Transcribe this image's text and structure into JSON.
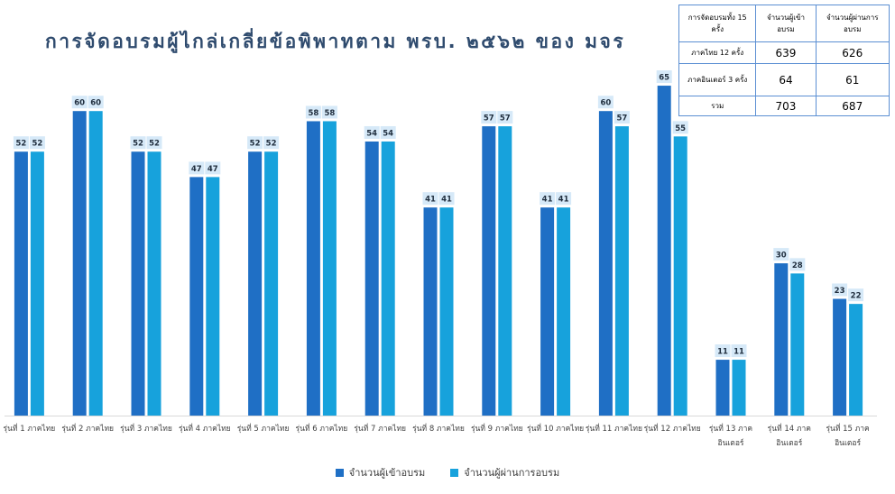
{
  "title": "การจัดอบรมผู้ไกล่เกลี่ยข้อพิพาทตาม พรบ. ๒๕๖๒ ของ มจร",
  "colors": {
    "series1": "#1f6fc5",
    "series2": "#17a2dc",
    "label_bg": "#d6e9f8"
  },
  "summary_table": {
    "headers": [
      "การจัดอบรมทั้ง 15 ครั้ง",
      "จำนวนผู้เข้าอบรม",
      "จำนวนผู้ผ่านการอบรม"
    ],
    "rows": [
      [
        "ภาคไทย 12 ครั้ง",
        "639",
        "626"
      ],
      [
        "ภาคอินเตอร์ 3 ครั้ง",
        "64",
        "61"
      ],
      [
        "รวม",
        "703",
        "687"
      ]
    ]
  },
  "chart_data": {
    "type": "bar",
    "title": "การจัดอบรมผู้ไกล่เกลี่ยข้อพิพาทตาม พรบ. ๒๕๖๒ ของ มจร",
    "categories": [
      [
        "รุ่นที่ 1 ภาคไทย"
      ],
      [
        "รุ่นที่ 2 ภาคไทย"
      ],
      [
        "รุ่นที่ 3 ภาคไทย"
      ],
      [
        "รุ่นที่ 4 ภาคไทย"
      ],
      [
        "รุ่นที่ 5 ภาคไทย"
      ],
      [
        "รุ่นที่ 6 ภาคไทย"
      ],
      [
        "รุ่นที่ 7 ภาคไทย"
      ],
      [
        "รุ่นที่ 8 ภาคไทย"
      ],
      [
        "รุ่นที่ 9 ภาคไทย"
      ],
      [
        "รุ่นที่ 10 ภาคไทย"
      ],
      [
        "รุ่นที่ 11 ภาคไทย"
      ],
      [
        "รุ่นที่ 12 ภาคไทย"
      ],
      [
        "รุ่นที่ 13 ภาค",
        "อินเตอร์"
      ],
      [
        "รุ่นที่ 14 ภาค",
        "อินเตอร์"
      ],
      [
        "รุ่นที่ 15 ภาค",
        "อินเตอร์"
      ]
    ],
    "series": [
      {
        "name": "จำนวนผู้เข้าอบรม",
        "values": [
          52,
          60,
          52,
          47,
          52,
          58,
          54,
          41,
          57,
          41,
          60,
          65,
          11,
          30,
          23
        ]
      },
      {
        "name": "จำนวนผู้ผ่านการอบรม",
        "values": [
          52,
          60,
          52,
          47,
          52,
          58,
          54,
          41,
          57,
          41,
          57,
          55,
          11,
          28,
          22
        ]
      }
    ],
    "ylim": [
      0,
      70
    ],
    "grid": false,
    "legend": "bottom"
  }
}
